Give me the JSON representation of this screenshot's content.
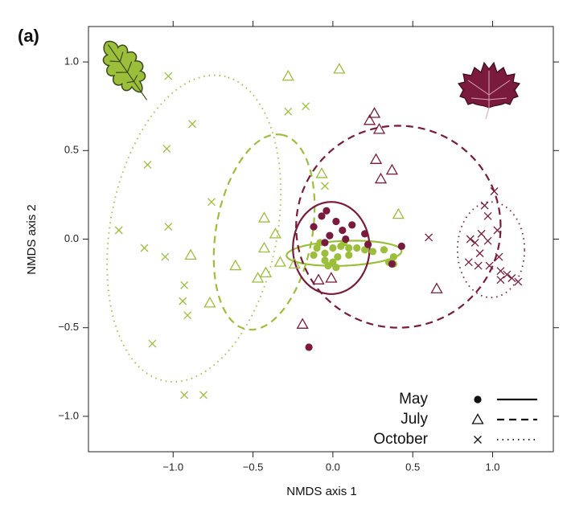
{
  "chart_data": {
    "type": "scatter",
    "panel_label": "(a)",
    "x_label": "NMDS axis 1",
    "y_label": "NMDS axis 2",
    "xlim": [
      -1.53,
      1.38
    ],
    "ylim": [
      -1.2,
      1.2
    ],
    "xticks": [
      {
        "value": -1.0,
        "label": "−1.0"
      },
      {
        "value": -0.5,
        "label": "−0.5"
      },
      {
        "value": 0.0,
        "label": "0.0"
      },
      {
        "value": 0.5,
        "label": "0.5"
      },
      {
        "value": 1.0,
        "label": "1.0"
      }
    ],
    "yticks": [
      {
        "value": -1.0,
        "label": "−1.0"
      },
      {
        "value": -0.5,
        "label": "−0.5"
      },
      {
        "value": 0.0,
        "label": "0.0"
      },
      {
        "value": 0.5,
        "label": "0.5"
      },
      {
        "value": 1.0,
        "label": "1.0"
      }
    ],
    "legend_position": "lower right",
    "legend": [
      {
        "name": "May",
        "marker": "circle",
        "dash": "solid"
      },
      {
        "name": "July",
        "marker": "triangle",
        "dash": "dashed"
      },
      {
        "name": "October",
        "marker": "cross",
        "dash": "dotted"
      }
    ],
    "series": [
      {
        "legend": 2,
        "color": "#9bbf3b",
        "x": [
          -1.03,
          -0.88,
          -1.04,
          -1.16,
          -0.76,
          -1.34,
          -1.03,
          -1.18,
          -1.05,
          -0.93,
          -0.94,
          -0.91,
          -1.13,
          -0.93,
          -0.81,
          -0.17,
          -0.05,
          -0.28
        ],
        "y": [
          0.92,
          0.65,
          0.51,
          0.42,
          0.21,
          0.05,
          0.07,
          -0.05,
          -0.1,
          -0.26,
          -0.35,
          -0.43,
          -0.59,
          -0.88,
          -0.88,
          0.75,
          0.3,
          0.72
        ]
      },
      {
        "legend": 1,
        "color": "#9bbf3b",
        "x": [
          -0.28,
          0.04,
          -0.07,
          -0.43,
          0.41,
          -0.43,
          -0.89,
          -0.61,
          -0.36,
          -0.33,
          -0.47,
          -0.42,
          -0.77,
          -0.24
        ],
        "y": [
          0.92,
          0.96,
          0.37,
          0.12,
          0.14,
          -0.05,
          -0.09,
          -0.15,
          0.03,
          -0.13,
          -0.22,
          -0.19,
          -0.36,
          -0.14
        ]
      },
      {
        "legend": 0,
        "color": "#9bbf3b",
        "x": [
          -0.1,
          -0.05,
          0.0,
          0.05,
          0.1,
          0.15,
          0.2,
          0.25,
          0.32,
          0.38,
          0.38,
          0.35,
          -0.05,
          0.0,
          0.03,
          -0.03,
          0.1,
          -0.12,
          0.07,
          -0.08,
          0.02
        ],
        "y": [
          -0.05,
          -0.08,
          -0.05,
          -0.04,
          -0.05,
          -0.05,
          -0.06,
          -0.07,
          -0.06,
          -0.1,
          -0.14,
          -0.13,
          -0.12,
          -0.13,
          -0.1,
          -0.15,
          -0.09,
          -0.09,
          -0.02,
          -0.02,
          -0.16
        ]
      },
      {
        "legend": 0,
        "color": "#7a1b3d",
        "x": [
          -0.07,
          -0.04,
          0.02,
          -0.12,
          0.12,
          0.2,
          0.43,
          0.37,
          0.22,
          -0.02,
          0.06,
          -0.15,
          -0.05,
          0.08
        ],
        "y": [
          0.13,
          0.16,
          0.1,
          0.07,
          0.08,
          0.03,
          -0.04,
          -0.14,
          -0.03,
          0.02,
          0.05,
          -0.61,
          -0.02,
          0.0
        ]
      },
      {
        "legend": 1,
        "color": "#7a1b3d",
        "x": [
          0.26,
          0.23,
          0.29,
          0.27,
          0.37,
          0.3,
          -0.01,
          -0.09,
          -0.19,
          0.65
        ],
        "y": [
          0.71,
          0.67,
          0.62,
          0.45,
          0.39,
          0.34,
          -0.22,
          -0.23,
          -0.48,
          -0.28
        ]
      },
      {
        "legend": 2,
        "color": "#7a1b3d",
        "x": [
          0.6,
          1.01,
          0.95,
          0.97,
          1.03,
          0.86,
          0.89,
          0.97,
          0.92,
          0.85,
          0.91,
          1.04,
          1.05,
          1.09,
          1.12,
          1.16,
          1.05,
          0.98,
          0.93
        ],
        "y": [
          0.01,
          0.27,
          0.19,
          0.13,
          0.05,
          0.0,
          -0.02,
          -0.01,
          -0.08,
          -0.13,
          -0.15,
          -0.1,
          -0.18,
          -0.2,
          -0.22,
          -0.24,
          -0.23,
          -0.15,
          0.03
        ]
      }
    ],
    "ellipses": [
      {
        "legend": 2,
        "color": "#9bbf3b",
        "cx": -0.87,
        "cy": 0.06,
        "a": 0.88,
        "b": 0.52,
        "angle": 77
      },
      {
        "legend": 1,
        "color": "#9bbf3b",
        "cx": -0.43,
        "cy": 0.04,
        "a": 0.56,
        "b": 0.3,
        "angle": 78
      },
      {
        "legend": 0,
        "color": "#9bbf3b",
        "cx": 0.07,
        "cy": -0.08,
        "a": 0.36,
        "b": 0.07,
        "angle": 2
      },
      {
        "legend": 0,
        "color": "#7a1b3d",
        "cx": -0.01,
        "cy": -0.05,
        "a": 0.24,
        "b": 0.26,
        "angle": 0
      },
      {
        "legend": 1,
        "color": "#7a1b3d",
        "cx": 0.41,
        "cy": 0.07,
        "a": 0.64,
        "b": 0.57,
        "angle": 0
      },
      {
        "legend": 2,
        "color": "#7a1b3d",
        "cx": 0.99,
        "cy": -0.06,
        "a": 0.21,
        "b": 0.27,
        "angle": 0
      }
    ]
  }
}
